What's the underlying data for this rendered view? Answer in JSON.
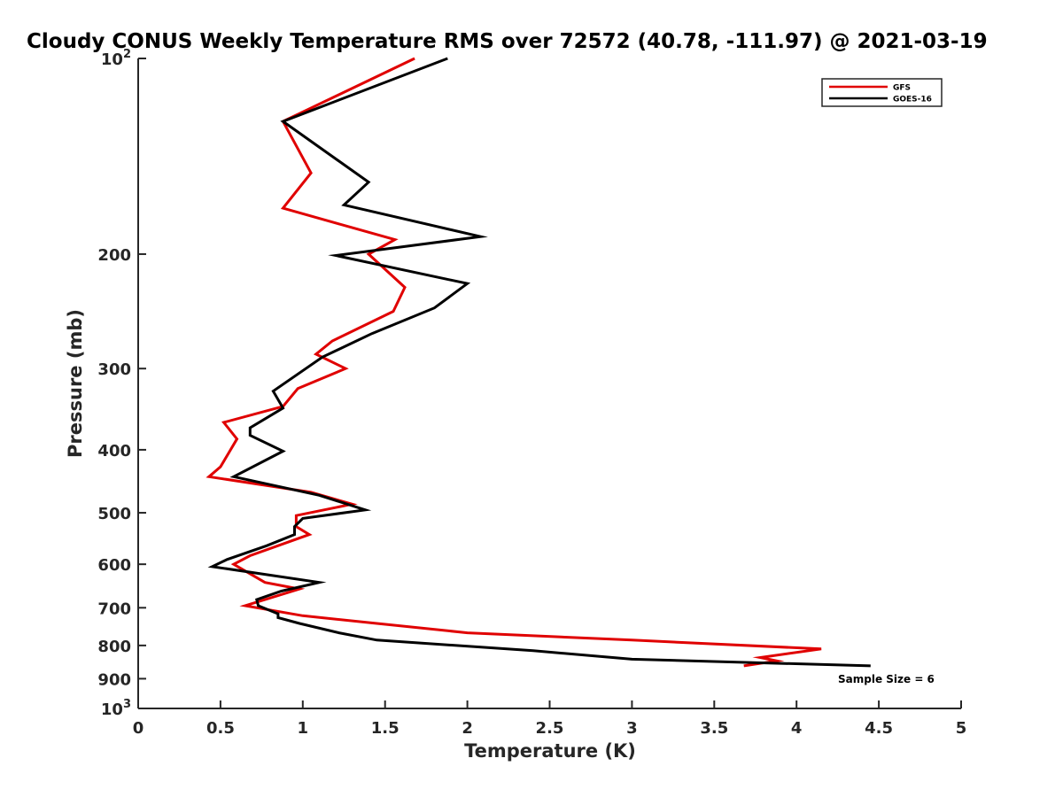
{
  "chart_data": {
    "type": "line",
    "title": "Cloudy CONUS Weekly Temperature RMS over 72572 (40.78, -111.97) @ 2021-03-19",
    "xlabel": "Temperature (K)",
    "ylabel": "Pressure (mb)",
    "xlim": [
      0,
      5
    ],
    "ylim": [
      100,
      1000
    ],
    "yscale": "log",
    "y_reversed": true,
    "grid": false,
    "legend_position": "top-right",
    "x_ticks": [
      0,
      0.5,
      1,
      1.5,
      2,
      2.5,
      3,
      3.5,
      4,
      4.5,
      5
    ],
    "x_tick_labels": [
      "0",
      "0.5",
      "1",
      "1.5",
      "2",
      "2.5",
      "3",
      "3.5",
      "4",
      "4.5",
      "5"
    ],
    "y_ticks": [
      {
        "value": 100,
        "base": "10",
        "exp": "2"
      },
      {
        "value": 200,
        "label": "200"
      },
      {
        "value": 300,
        "label": "300"
      },
      {
        "value": 400,
        "label": "400"
      },
      {
        "value": 500,
        "label": "500"
      },
      {
        "value": 600,
        "label": "600"
      },
      {
        "value": 700,
        "label": "700"
      },
      {
        "value": 800,
        "label": "800"
      },
      {
        "value": 900,
        "label": "900"
      },
      {
        "value": 1000,
        "base": "10",
        "exp": "3"
      }
    ],
    "series": [
      {
        "name": "GFS",
        "color": "#e00000",
        "points": [
          [
            1.68,
            100
          ],
          [
            0.88,
            125
          ],
          [
            1.05,
            150
          ],
          [
            0.88,
            170
          ],
          [
            1.56,
            190
          ],
          [
            1.4,
            200
          ],
          [
            1.62,
            225
          ],
          [
            1.55,
            245
          ],
          [
            1.18,
            272
          ],
          [
            1.08,
            285
          ],
          [
            1.26,
            300
          ],
          [
            0.97,
            322
          ],
          [
            0.88,
            343
          ],
          [
            0.52,
            363
          ],
          [
            0.6,
            385
          ],
          [
            0.5,
            425
          ],
          [
            0.43,
            440
          ],
          [
            1.05,
            465
          ],
          [
            1.3,
            485
          ],
          [
            0.96,
            505
          ],
          [
            0.96,
            525
          ],
          [
            1.04,
            540
          ],
          [
            0.68,
            582
          ],
          [
            0.58,
            600
          ],
          [
            0.77,
            640
          ],
          [
            0.98,
            655
          ],
          [
            0.65,
            695
          ],
          [
            1.0,
            720
          ],
          [
            1.45,
            740
          ],
          [
            2.0,
            765
          ],
          [
            3.0,
            785
          ],
          [
            4.15,
            810
          ],
          [
            3.78,
            835
          ],
          [
            3.88,
            845
          ],
          [
            3.68,
            860
          ]
        ]
      },
      {
        "name": "GOES-16",
        "color": "#000000",
        "points": [
          [
            1.88,
            100
          ],
          [
            0.88,
            125
          ],
          [
            1.4,
            155
          ],
          [
            1.25,
            168
          ],
          [
            2.08,
            188
          ],
          [
            1.2,
            201
          ],
          [
            2.0,
            222
          ],
          [
            1.8,
            242
          ],
          [
            1.42,
            265
          ],
          [
            1.12,
            288
          ],
          [
            0.82,
            325
          ],
          [
            0.88,
            345
          ],
          [
            0.68,
            370
          ],
          [
            0.68,
            380
          ],
          [
            0.88,
            402
          ],
          [
            0.58,
            440
          ],
          [
            1.1,
            470
          ],
          [
            1.38,
            495
          ],
          [
            1.0,
            510
          ],
          [
            0.95,
            525
          ],
          [
            0.95,
            540
          ],
          [
            0.78,
            562
          ],
          [
            0.54,
            590
          ],
          [
            0.45,
            605
          ],
          [
            1.1,
            640
          ],
          [
            0.87,
            660
          ],
          [
            0.72,
            680
          ],
          [
            0.73,
            695
          ],
          [
            0.85,
            715
          ],
          [
            0.85,
            725
          ],
          [
            0.98,
            740
          ],
          [
            1.22,
            765
          ],
          [
            1.45,
            785
          ],
          [
            2.4,
            815
          ],
          [
            3.0,
            840
          ],
          [
            4.45,
            860
          ]
        ]
      }
    ],
    "annotation": "Sample Size = 6"
  }
}
